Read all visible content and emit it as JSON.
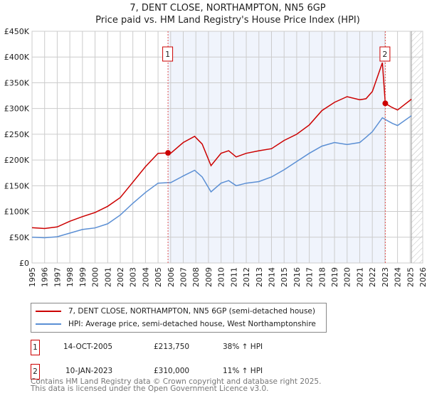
{
  "chart_data": {
    "type": "line",
    "title": "7, DENT CLOSE, NORTHAMPTON, NN5 6GP",
    "subtitle": "Price paid vs. HM Land Registry's House Price Index (HPI)",
    "xlabel": "",
    "ylabel": "",
    "xlim": [
      1995,
      2026
    ],
    "ylim": [
      0,
      450000
    ],
    "x_ticks": [
      "1995",
      "1996",
      "1997",
      "1998",
      "1999",
      "2000",
      "2001",
      "2002",
      "2003",
      "2004",
      "2005",
      "2006",
      "2007",
      "2008",
      "2009",
      "2010",
      "2011",
      "2012",
      "2013",
      "2014",
      "2015",
      "2016",
      "2017",
      "2018",
      "2019",
      "2020",
      "2021",
      "2022",
      "2023",
      "2024",
      "2025",
      "2026"
    ],
    "y_ticks": [
      {
        "v": 0,
        "label": "£0"
      },
      {
        "v": 50000,
        "label": "£50K"
      },
      {
        "v": 100000,
        "label": "£100K"
      },
      {
        "v": 150000,
        "label": "£150K"
      },
      {
        "v": 200000,
        "label": "£200K"
      },
      {
        "v": 250000,
        "label": "£250K"
      },
      {
        "v": 300000,
        "label": "£300K"
      },
      {
        "v": 350000,
        "label": "£350K"
      },
      {
        "v": 400000,
        "label": "£400K"
      },
      {
        "v": 450000,
        "label": "£450K"
      }
    ],
    "grid": true,
    "shaded_range": [
      2005.79,
      2023.03
    ],
    "forecast_hatch_from": 2025.1,
    "series": [
      {
        "name": "7, DENT CLOSE, NORTHAMPTON, NN5 6GP (semi-detached house)",
        "color": "#cc0000",
        "x": [
          1995,
          1996,
          1997,
          1998,
          1999,
          2000,
          2001,
          2002,
          2003,
          2004,
          2005,
          2005.79,
          2006,
          2007,
          2007.9,
          2008.5,
          2009.2,
          2010,
          2010.6,
          2011.2,
          2012,
          2013,
          2014,
          2015,
          2016,
          2017,
          2018,
          2019,
          2020,
          2021,
          2021.5,
          2022,
          2022.8,
          2023.03,
          2023.5,
          2024,
          2025.1
        ],
        "y": [
          68500,
          67000,
          70000,
          81000,
          90000,
          98000,
          110000,
          127000,
          157000,
          187000,
          213000,
          213750,
          213000,
          234000,
          246000,
          231000,
          189000,
          213000,
          218000,
          206000,
          213000,
          218000,
          222000,
          238000,
          250000,
          268000,
          296000,
          312000,
          323000,
          317000,
          319000,
          333000,
          389000,
          310000,
          303000,
          297000,
          318000
        ]
      },
      {
        "name": "HPI: Average price, semi-detached house, West Northamptonshire",
        "color": "#5b8fd4",
        "x": [
          1995,
          1996,
          1997,
          1998,
          1999,
          2000,
          2001,
          2002,
          2003,
          2004,
          2005,
          2005.79,
          2006,
          2007,
          2007.9,
          2008.5,
          2009.2,
          2010,
          2010.6,
          2011.2,
          2012,
          2013,
          2014,
          2015,
          2016,
          2017,
          2018,
          2019,
          2020,
          2021,
          2021.5,
          2022,
          2022.8,
          2023.3,
          2023.6,
          2024,
          2025.1
        ],
        "y": [
          50000,
          49000,
          51000,
          58000,
          65000,
          68000,
          76000,
          93000,
          116000,
          137000,
          155000,
          156000,
          156000,
          169000,
          180000,
          167000,
          138000,
          155000,
          160000,
          150000,
          155000,
          158000,
          167000,
          181000,
          197000,
          213000,
          227000,
          234000,
          230000,
          234000,
          244000,
          255000,
          282000,
          275000,
          271000,
          267000,
          286000
        ]
      }
    ],
    "sales": [
      {
        "id": "1",
        "x": 2005.79,
        "y": 213750,
        "date": "14-OCT-2005",
        "price": "£213,750",
        "hpi": "38% ↑ HPI"
      },
      {
        "id": "2",
        "x": 2023.03,
        "y": 310000,
        "date": "10-JAN-2023",
        "price": "£310,000",
        "hpi": "11% ↑ HPI"
      }
    ]
  },
  "footer": {
    "line1": "Contains HM Land Registry data © Crown copyright and database right 2025.",
    "line2": "This data is licensed under the Open Government Licence v3.0."
  }
}
